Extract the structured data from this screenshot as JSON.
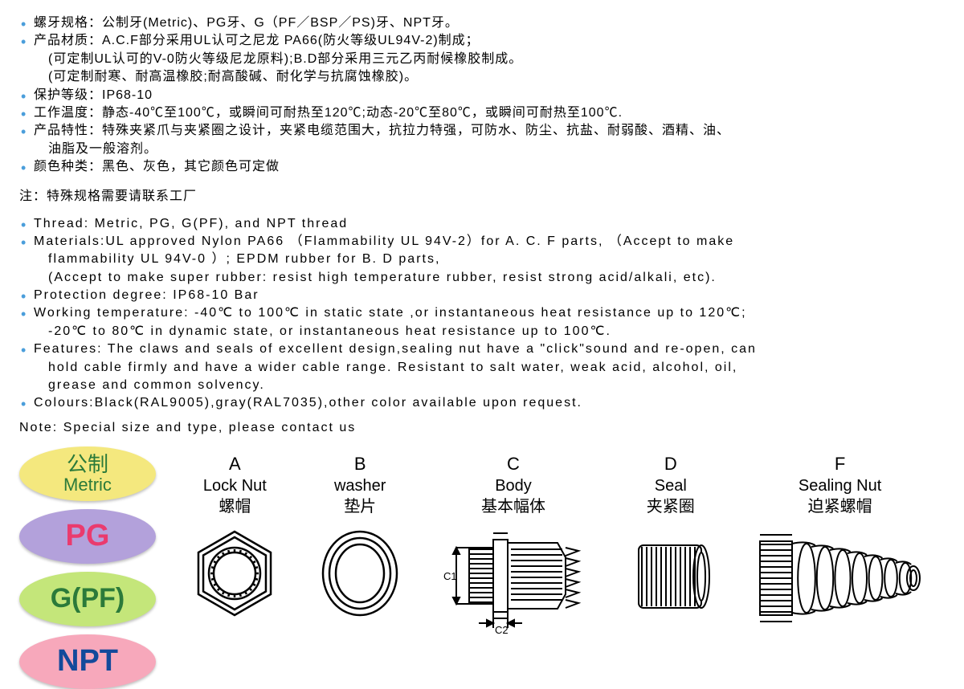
{
  "cn_specs": [
    {
      "label": "螺牙规格：",
      "text": "公制牙(Metric)、PG牙、G（PF／BSP／PS)牙、NPT牙。"
    },
    {
      "label": "产品材质：",
      "text": "A.C.F部分采用UL认可之尼龙 PA66(防火等级UL94V-2)制成；",
      "cont": [
        "(可定制UL认可的V-0防火等级尼龙原料);B.D部分采用三元乙丙耐候橡胶制成。",
        "(可定制耐寒、耐高温橡胶;耐高酸碱、耐化学与抗腐蚀橡胶)。"
      ]
    },
    {
      "label": "保护等级：",
      "text": "IP68-10"
    },
    {
      "label": "工作温度：",
      "text": "静态-40℃至100℃，或瞬间可耐热至120℃;动态-20℃至80℃，或瞬间可耐热至100℃."
    },
    {
      "label": "产品特性：",
      "text": "特殊夹紧爪与夹紧圈之设计，夹紧电缆范围大，抗拉力特强，可防水、防尘、抗盐、耐弱酸、酒精、油、",
      "cont": [
        "油脂及一般溶剂。"
      ]
    },
    {
      "label": "颜色种类：",
      "text": "黑色、灰色，其它颜色可定做"
    }
  ],
  "cn_note": "注：特殊规格需要请联系工厂",
  "en_specs": [
    {
      "text": "Thread: Metric, PG, G(PF), and NPT thread"
    },
    {
      "text": "Materials:UL approved Nylon PA66 （Flammability UL 94V-2）for A. C. F parts, （Accept to make",
      "cont": [
        "flammability UL 94V-0 ）; EPDM rubber for B. D parts,",
        "(Accept to make super rubber: resist high temperature rubber, resist strong acid/alkali, etc)."
      ]
    },
    {
      "text": "Protection degree: IP68-10 Bar"
    },
    {
      "text": "Working temperature: -40℃ to 100℃ in static state ,or instantaneous heat resistance up to 120℃;",
      "cont": [
        "-20℃ to 80℃ in dynamic state, or instantaneous heat resistance up to 100℃."
      ]
    },
    {
      "text": "Features: The claws and seals of excellent design,sealing nut have a \"click\"sound and re-open, can",
      "cont": [
        "hold cable firmly and have a wider cable range. Resistant to salt water, weak acid, alcohol, oil,",
        "grease and common solvency."
      ]
    },
    {
      "text": "Colours:Black(RAL9005),gray(RAL7035),other color available upon request."
    }
  ],
  "en_note": "Note: Special size and type, please contact us",
  "badges": [
    {
      "cn": "公制",
      "en": "Metric",
      "bg": "#f4e87e",
      "color": "#2b7a3a",
      "single": false
    },
    {
      "text": "PG",
      "bg": "#b3a1db",
      "color": "#ea3b6e",
      "single": true
    },
    {
      "text": "G(PF)",
      "bg": "#c4e67a",
      "color": "#2b7a3a",
      "single": true,
      "fs": 34
    },
    {
      "text": "NPT",
      "bg": "#f7a8bb",
      "color": "#134a9b",
      "single": true
    }
  ],
  "parts": [
    {
      "letter": "A",
      "en": "Lock Nut",
      "cn": "螺帽"
    },
    {
      "letter": "B",
      "en": "washer",
      "cn": "垫片"
    },
    {
      "letter": "C",
      "en": "Body",
      "cn": "基本幅体"
    },
    {
      "letter": "D",
      "en": "Seal",
      "cn": "夹紧圈"
    },
    {
      "letter": "F",
      "en": "Sealing Nut",
      "cn": "迫紧螺帽"
    }
  ],
  "dim_labels": {
    "c1": "C1",
    "c2": "C2"
  },
  "colors": {
    "bullet": "#4a9edb",
    "stroke": "#000000"
  }
}
